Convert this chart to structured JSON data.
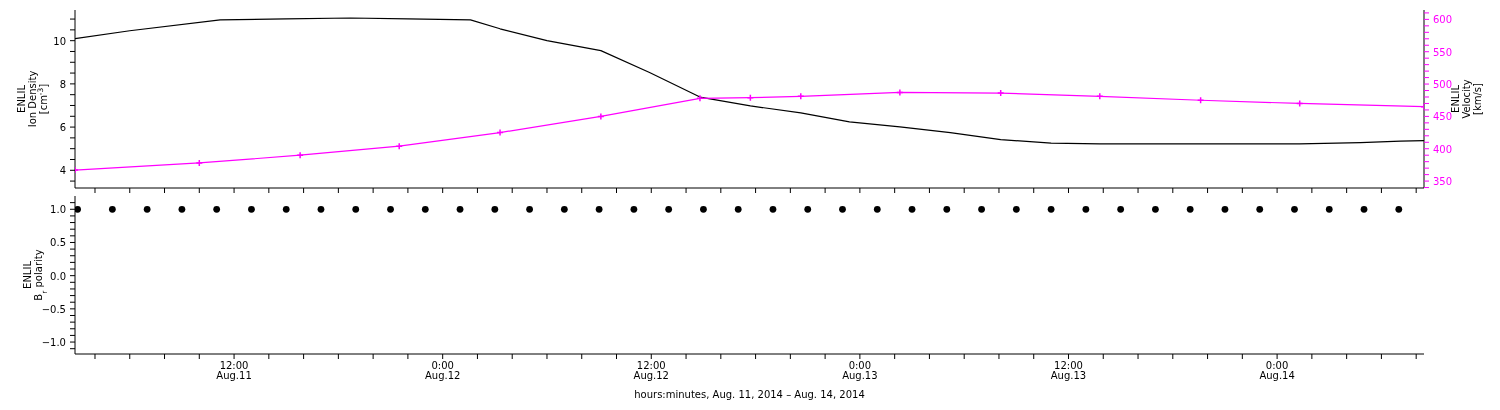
{
  "chart_data": [
    {
      "type": "line",
      "ylabel": "ENLIL\nIon Density\n[cm$^{-3}$]",
      "y2label": "ENLIL\nVelocity\n[km/s]",
      "xlim": [
        "2014-08-11T02:51",
        "2014-08-14T08:27"
      ],
      "xticks": [
        {
          "value": "2014-08-11T04:00",
          "label": null
        },
        {
          "value": "2014-08-11T06:00",
          "label": null
        },
        {
          "value": "2014-08-11T08:00",
          "label": null
        },
        {
          "value": "2014-08-11T10:00",
          "label": null
        },
        {
          "value": "2014-08-11T12:00",
          "label": null
        },
        {
          "value": "2014-08-11T14:00",
          "label": null
        },
        {
          "value": "2014-08-11T16:00",
          "label": null
        },
        {
          "value": "2014-08-11T18:00",
          "label": null
        },
        {
          "value": "2014-08-11T20:00",
          "label": null
        },
        {
          "value": "2014-08-11T22:00",
          "label": null
        },
        {
          "value": "2014-08-12T00:00",
          "label": null
        },
        {
          "value": "2014-08-12T02:00",
          "label": null
        },
        {
          "value": "2014-08-12T04:00",
          "label": null
        },
        {
          "value": "2014-08-12T06:00",
          "label": null
        },
        {
          "value": "2014-08-12T08:00",
          "label": null
        },
        {
          "value": "2014-08-12T10:00",
          "label": null
        },
        {
          "value": "2014-08-12T12:00",
          "label": null
        },
        {
          "value": "2014-08-12T14:00",
          "label": null
        },
        {
          "value": "2014-08-12T16:00",
          "label": null
        },
        {
          "value": "2014-08-12T18:00",
          "label": null
        },
        {
          "value": "2014-08-12T20:00",
          "label": null
        },
        {
          "value": "2014-08-12T22:00",
          "label": null
        },
        {
          "value": "2014-08-13T00:00",
          "label": null
        },
        {
          "value": "2014-08-13T02:00",
          "label": null
        },
        {
          "value": "2014-08-13T04:00",
          "label": null
        },
        {
          "value": "2014-08-13T06:00",
          "label": null
        },
        {
          "value": "2014-08-13T08:00",
          "label": null
        },
        {
          "value": "2014-08-13T10:00",
          "label": null
        },
        {
          "value": "2014-08-13T12:00",
          "label": null
        },
        {
          "value": "2014-08-13T14:00",
          "label": null
        },
        {
          "value": "2014-08-13T16:00",
          "label": null
        },
        {
          "value": "2014-08-13T18:00",
          "label": null
        },
        {
          "value": "2014-08-13T20:00",
          "label": null
        },
        {
          "value": "2014-08-13T22:00",
          "label": null
        },
        {
          "value": "2014-08-14T00:00",
          "label": null
        },
        {
          "value": "2014-08-14T02:00",
          "label": null
        },
        {
          "value": "2014-08-14T04:00",
          "label": null
        },
        {
          "value": "2014-08-14T06:00",
          "label": null
        },
        {
          "value": "2014-08-14T08:00",
          "label": null
        }
      ],
      "ylim": [
        3.18,
        11.42
      ],
      "yticks": [
        {
          "value": 3.5,
          "label": null
        },
        4,
        {
          "value": 4.5,
          "label": null
        },
        {
          "value": 5,
          "label": null
        },
        {
          "value": 5.5,
          "label": null
        },
        6,
        {
          "value": 6.5,
          "label": null
        },
        {
          "value": 7,
          "label": null
        },
        {
          "value": 7.5,
          "label": null
        },
        8,
        {
          "value": 8.5,
          "label": null
        },
        {
          "value": 9,
          "label": null
        },
        {
          "value": 9.5,
          "label": null
        },
        10,
        {
          "value": 10.5,
          "label": null
        },
        {
          "value": 11,
          "label": null
        }
      ],
      "y2lim": [
        339.3,
        614.5
      ],
      "y2ticks": [
        {
          "value": 340,
          "label": null
        },
        350,
        {
          "value": 360,
          "label": null
        },
        {
          "value": 370,
          "label": null
        },
        {
          "value": 380,
          "label": null
        },
        {
          "value": 390,
          "label": null
        },
        400,
        {
          "value": 410,
          "label": null
        },
        {
          "value": 420,
          "label": null
        },
        {
          "value": 430,
          "label": null
        },
        {
          "value": 440,
          "label": null
        },
        450,
        {
          "value": 460,
          "label": null
        },
        {
          "value": 470,
          "label": null
        },
        {
          "value": 480,
          "label": null
        },
        {
          "value": 490,
          "label": null
        },
        500,
        {
          "value": 510,
          "label": null
        },
        {
          "value": 520,
          "label": null
        },
        {
          "value": 530,
          "label": null
        },
        {
          "value": 540,
          "label": null
        },
        550,
        {
          "value": 560,
          "label": null
        },
        {
          "value": 570,
          "label": null
        },
        {
          "value": 580,
          "label": null
        },
        {
          "value": 590,
          "label": null
        },
        600,
        {
          "value": 610,
          "label": null
        }
      ],
      "tick_labels": "y",
      "grid": false,
      "legend": false,
      "series": [
        {
          "color": "#000000",
          "marker": "none",
          "x": [
            "2014-08-11T02:51",
            "2014-08-11T06:00",
            "2014-08-11T11:12",
            "2014-08-11T15:00",
            "2014-08-11T18:42",
            "2014-08-11T22:00",
            "2014-08-12T01:36",
            "2014-08-12T03:18",
            "2014-08-12T06:00",
            "2014-08-12T09:06",
            "2014-08-12T11:54",
            "2014-08-12T14:48",
            "2014-08-12T17:42",
            "2014-08-12T20:36",
            "2014-08-12T23:24",
            "2014-08-13T02:18",
            "2014-08-13T05:12",
            "2014-08-13T08:06",
            "2014-08-13T11:00",
            "2014-08-13T13:48",
            "2014-08-13T19:36",
            "2014-08-14T01:18",
            "2014-08-14T04:48",
            "2014-08-14T07:06",
            "2014-08-14T08:27"
          ],
          "values": [
            10.09,
            10.46,
            10.96,
            11.01,
            11.05,
            11.01,
            10.96,
            10.55,
            10.0,
            9.54,
            8.53,
            7.39,
            6.98,
            6.66,
            6.24,
            6.01,
            5.74,
            5.42,
            5.26,
            5.22,
            5.22,
            5.22,
            5.28,
            5.35,
            5.37
          ]
        },
        {
          "color": "#ff00ff",
          "axis": "y2",
          "marker": "cross",
          "x": [
            "2014-08-11T02:51",
            "2014-08-11T10:00",
            "2014-08-11T15:48",
            "2014-08-11T21:30",
            "2014-08-12T03:18",
            "2014-08-12T09:06",
            "2014-08-12T14:48",
            "2014-08-12T17:42",
            "2014-08-12T20:36",
            "2014-08-13T02:18",
            "2014-08-13T08:06",
            "2014-08-13T13:48",
            "2014-08-13T19:36",
            "2014-08-14T01:18",
            "2014-08-14T08:27"
          ],
          "values": [
            367,
            378,
            390,
            404,
            425,
            450,
            478,
            479,
            481,
            487,
            486,
            481,
            475,
            470,
            465
          ]
        }
      ]
    },
    {
      "type": "scatter",
      "ylabel": "ENLIL\nB$_{r}$ polarity",
      "xlabel": "hours:minutes, Aug. 11, 2014 – Aug. 14, 2014",
      "xlim": [
        "2014-08-11T02:51",
        "2014-08-14T08:27"
      ],
      "xticks": [
        {
          "value": "2014-08-11T04:00",
          "label": null
        },
        {
          "value": "2014-08-11T06:00",
          "label": null
        },
        {
          "value": "2014-08-11T08:00",
          "label": null
        },
        {
          "value": "2014-08-11T10:00",
          "label": null
        },
        {
          "value": "2014-08-11T12:00",
          "label": "12:00\nAug.11"
        },
        {
          "value": "2014-08-11T14:00",
          "label": null
        },
        {
          "value": "2014-08-11T16:00",
          "label": null
        },
        {
          "value": "2014-08-11T18:00",
          "label": null
        },
        {
          "value": "2014-08-11T20:00",
          "label": null
        },
        {
          "value": "2014-08-11T22:00",
          "label": null
        },
        {
          "value": "2014-08-12T00:00",
          "label": "0:00\nAug.12"
        },
        {
          "value": "2014-08-12T02:00",
          "label": null
        },
        {
          "value": "2014-08-12T04:00",
          "label": null
        },
        {
          "value": "2014-08-12T06:00",
          "label": null
        },
        {
          "value": "2014-08-12T08:00",
          "label": null
        },
        {
          "value": "2014-08-12T10:00",
          "label": null
        },
        {
          "value": "2014-08-12T12:00",
          "label": "12:00\nAug.12"
        },
        {
          "value": "2014-08-12T14:00",
          "label": null
        },
        {
          "value": "2014-08-12T16:00",
          "label": null
        },
        {
          "value": "2014-08-12T18:00",
          "label": null
        },
        {
          "value": "2014-08-12T20:00",
          "label": null
        },
        {
          "value": "2014-08-12T22:00",
          "label": null
        },
        {
          "value": "2014-08-13T00:00",
          "label": "0:00\nAug.13"
        },
        {
          "value": "2014-08-13T02:00",
          "label": null
        },
        {
          "value": "2014-08-13T04:00",
          "label": null
        },
        {
          "value": "2014-08-13T06:00",
          "label": null
        },
        {
          "value": "2014-08-13T08:00",
          "label": null
        },
        {
          "value": "2014-08-13T10:00",
          "label": null
        },
        {
          "value": "2014-08-13T12:00",
          "label": "12:00\nAug.13"
        },
        {
          "value": "2014-08-13T14:00",
          "label": null
        },
        {
          "value": "2014-08-13T16:00",
          "label": null
        },
        {
          "value": "2014-08-13T18:00",
          "label": null
        },
        {
          "value": "2014-08-13T20:00",
          "label": null
        },
        {
          "value": "2014-08-13T22:00",
          "label": null
        },
        {
          "value": "2014-08-14T00:00",
          "label": "0:00\nAug.14"
        },
        {
          "value": "2014-08-14T02:00",
          "label": null
        },
        {
          "value": "2014-08-14T04:00",
          "label": null
        },
        {
          "value": "2014-08-14T06:00",
          "label": null
        },
        {
          "value": "2014-08-14T08:00",
          "label": null
        }
      ],
      "ylim": [
        -1.18,
        1.2
      ],
      "yticks": [
        {
          "value": -1.1,
          "label": null
        },
        {
          "value": -1,
          "label": "−1.0"
        },
        {
          "value": -0.9,
          "label": null
        },
        {
          "value": -0.8,
          "label": null
        },
        {
          "value": -0.7,
          "label": null
        },
        {
          "value": -0.6,
          "label": null
        },
        {
          "value": -0.5,
          "label": "−0.5"
        },
        {
          "value": -0.4,
          "label": null
        },
        {
          "value": -0.3,
          "label": null
        },
        {
          "value": -0.2,
          "label": null
        },
        {
          "value": -0.1,
          "label": null
        },
        {
          "value": 0,
          "label": "0.0"
        },
        {
          "value": 0.1,
          "label": null
        },
        {
          "value": 0.2,
          "label": null
        },
        {
          "value": 0.3,
          "label": null
        },
        {
          "value": 0.4,
          "label": null
        },
        {
          "value": 0.5,
          "label": "0.5"
        },
        {
          "value": 0.6,
          "label": null
        },
        {
          "value": 0.7,
          "label": null
        },
        {
          "value": 0.8,
          "label": null
        },
        {
          "value": 0.9,
          "label": null
        },
        {
          "value": 1,
          "label": "1.0"
        },
        {
          "value": 1.1,
          "label": null
        }
      ],
      "grid": false,
      "legend": false,
      "marker": "circle",
      "series": [
        {
          "color": "#000000",
          "x": [
            "2014-08-11T03:00",
            "2014-08-11T05:00",
            "2014-08-11T07:00",
            "2014-08-11T09:00",
            "2014-08-11T11:00",
            "2014-08-11T13:00",
            "2014-08-11T15:00",
            "2014-08-11T17:00",
            "2014-08-11T19:00",
            "2014-08-11T21:00",
            "2014-08-11T23:00",
            "2014-08-12T01:00",
            "2014-08-12T03:00",
            "2014-08-12T05:00",
            "2014-08-12T07:00",
            "2014-08-12T09:00",
            "2014-08-12T11:00",
            "2014-08-12T13:00",
            "2014-08-12T15:00",
            "2014-08-12T17:00",
            "2014-08-12T19:00",
            "2014-08-12T21:00",
            "2014-08-12T23:00",
            "2014-08-13T01:00",
            "2014-08-13T03:00",
            "2014-08-13T05:00",
            "2014-08-13T07:00",
            "2014-08-13T09:00",
            "2014-08-13T11:00",
            "2014-08-13T13:00",
            "2014-08-13T15:00",
            "2014-08-13T17:00",
            "2014-08-13T19:00",
            "2014-08-13T21:00",
            "2014-08-13T23:00",
            "2014-08-14T01:00",
            "2014-08-14T03:00",
            "2014-08-14T05:00",
            "2014-08-14T07:00"
          ],
          "values": [
            1,
            1,
            1,
            1,
            1,
            1,
            1,
            1,
            1,
            1,
            1,
            1,
            1,
            1,
            1,
            1,
            1,
            1,
            1,
            1,
            1,
            1,
            1,
            1,
            1,
            1,
            1,
            1,
            1,
            1,
            1,
            1,
            1,
            1,
            1,
            1,
            1,
            1,
            1
          ]
        }
      ]
    }
  ]
}
